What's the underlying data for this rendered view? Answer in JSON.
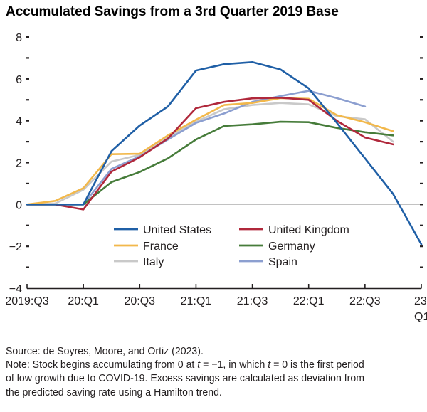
{
  "title": "Accumulated Savings from a 3rd Quarter 2019 Base",
  "chart_data": {
    "type": "line",
    "title": "Accumulated Savings from a 3rd Quarter 2019 Base",
    "xlabel": "",
    "ylabel": "",
    "x": [
      "2019:Q3",
      "2019:Q4",
      "20:Q1",
      "20:Q2",
      "20:Q3",
      "20:Q4",
      "21:Q1",
      "21:Q2",
      "21:Q3",
      "21:Q4",
      "22:Q1",
      "22:Q2",
      "22:Q3",
      "22:Q4",
      "23:Q1"
    ],
    "x_tick_labels": [
      {
        "index": 0,
        "lines": [
          "2019:Q3"
        ]
      },
      {
        "index": 2,
        "lines": [
          "20:Q1"
        ]
      },
      {
        "index": 4,
        "lines": [
          "20:Q3"
        ]
      },
      {
        "index": 6,
        "lines": [
          "21:Q1"
        ]
      },
      {
        "index": 8,
        "lines": [
          "21:Q3"
        ]
      },
      {
        "index": 10,
        "lines": [
          "22:Q1"
        ]
      },
      {
        "index": 12,
        "lines": [
          "22:Q3"
        ]
      },
      {
        "index": 14,
        "lines": [
          "23",
          "Q1"
        ]
      }
    ],
    "ylim": [
      -4,
      8
    ],
    "y_tick_labels": [
      "−4",
      "−2",
      "0",
      "2",
      "4",
      "6",
      "8"
    ],
    "y_tick_values": [
      -4,
      -2,
      0,
      2,
      4,
      6,
      8
    ],
    "y_minor_step": 1,
    "zero_line": true,
    "grid": false,
    "legend_position": "bottom-center (inside plot)",
    "series": [
      {
        "name": "United States",
        "color": "#1f5fa6",
        "values": [
          0,
          0,
          0,
          2.55,
          3.77,
          4.68,
          6.4,
          6.7,
          6.8,
          6.45,
          5.55,
          3.9,
          2.2,
          0.5,
          -1.9
        ]
      },
      {
        "name": "United Kingdom",
        "color": "#b0283b",
        "values": [
          0,
          0,
          -0.24,
          1.57,
          2.25,
          3.15,
          4.6,
          4.9,
          5.07,
          5.1,
          5.0,
          4.0,
          3.2,
          2.87,
          null
        ]
      },
      {
        "name": "France",
        "color": "#f2b84b",
        "values": [
          0,
          0.17,
          0.78,
          2.4,
          2.42,
          3.3,
          4.05,
          4.75,
          4.85,
          5.08,
          5.05,
          4.27,
          3.93,
          3.5,
          null
        ]
      },
      {
        "name": "Germany",
        "color": "#467c3a",
        "values": [
          0,
          0,
          0,
          1.07,
          1.55,
          2.2,
          3.1,
          3.75,
          3.83,
          3.95,
          3.93,
          3.66,
          3.45,
          3.3,
          null
        ]
      },
      {
        "name": "Italy",
        "color": "#c9c9c9",
        "values": [
          0,
          0.05,
          0.7,
          2.05,
          2.37,
          3.2,
          3.95,
          4.55,
          4.75,
          4.85,
          4.78,
          4.22,
          4.07,
          3.0,
          null
        ]
      },
      {
        "name": "Spain",
        "color": "#8c9fd0",
        "values": [
          0,
          0,
          0,
          1.7,
          2.3,
          3.1,
          3.9,
          4.35,
          4.9,
          5.18,
          5.43,
          5.08,
          4.68,
          null,
          null
        ]
      }
    ]
  },
  "notes": {
    "source": "Source: de Soyres, Moore, and Ortiz (2023).",
    "note_line1_pre": "Note: Stock begins accumulating from 0 at ",
    "note_t1": "t",
    "note_line1_mid": " = −1, in which ",
    "note_t2": "t",
    "note_line1_post": " = 0 is the first period",
    "note_line2": "of low growth due to COVID-19. Excess savings are calculated as deviation from",
    "note_line3": "the predicted saving rate using a Hamilton trend."
  }
}
